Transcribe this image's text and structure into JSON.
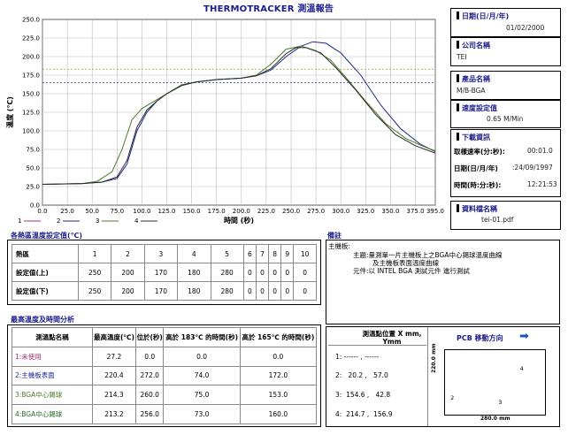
{
  "report_title": "THERMOTRACKER 測溫報告",
  "chart_data": {
    "type": "line",
    "xlabel": "時間 (秒)",
    "ylabel": "溫度 (℃)",
    "xlim": [
      0,
      395
    ],
    "ylim": [
      0,
      250
    ],
    "xticks": [
      "0.0",
      "25.0",
      "50.0",
      "75.0",
      "100.0",
      "125.0",
      "150.0",
      "175.0",
      "200.0",
      "225.0",
      "250.0",
      "275.0",
      "300.0",
      "325.0",
      "350.0",
      "375.0",
      "395.0"
    ],
    "yticks": [
      "0.0",
      "25.0",
      "50.0",
      "75.0",
      "100.0",
      "125.0",
      "150.0",
      "175.0",
      "200.0",
      "225.0",
      "250.0"
    ],
    "xtick_values": [
      0,
      25,
      50,
      75,
      100,
      125,
      150,
      175,
      200,
      225,
      250,
      275,
      300,
      325,
      350,
      375,
      395
    ],
    "ytick_values": [
      0,
      25,
      50,
      75,
      100,
      125,
      150,
      175,
      200,
      225,
      250
    ],
    "hlines": [
      {
        "y": 183,
        "color": "#9a9a2a"
      },
      {
        "y": 165,
        "color": "#2a3a9a"
      }
    ],
    "series": [
      {
        "name": "2",
        "color": "#1e2a8a",
        "x": [
          0,
          40,
          60,
          75,
          85,
          95,
          105,
          115,
          125,
          140,
          155,
          175,
          200,
          215,
          230,
          245,
          260,
          272,
          285,
          300,
          320,
          340,
          360,
          380,
          395
        ],
        "y": [
          28,
          29,
          31,
          36,
          55,
          100,
          125,
          140,
          150,
          162,
          166,
          169,
          171,
          174,
          182,
          200,
          214,
          220,
          218,
          205,
          175,
          135,
          103,
          82,
          72
        ]
      },
      {
        "name": "3",
        "color": "#4d7a2a",
        "x": [
          0,
          40,
          55,
          70,
          80,
          90,
          100,
          110,
          125,
          140,
          155,
          175,
          200,
          215,
          230,
          245,
          260,
          275,
          290,
          305,
          325,
          345,
          365,
          385,
          395
        ],
        "y": [
          28,
          29,
          32,
          45,
          75,
          115,
          130,
          138,
          150,
          162,
          166,
          169,
          171,
          175,
          190,
          210,
          214,
          208,
          195,
          172,
          140,
          110,
          90,
          78,
          73
        ]
      },
      {
        "name": "4",
        "color": "#2a2a2a",
        "x": [
          0,
          40,
          60,
          75,
          85,
          95,
          105,
          115,
          125,
          140,
          155,
          175,
          200,
          215,
          230,
          245,
          255,
          265,
          280,
          295,
          315,
          335,
          355,
          375,
          395
        ],
        "y": [
          28,
          29,
          31,
          38,
          60,
          105,
          128,
          140,
          150,
          161,
          166,
          169,
          171,
          174,
          184,
          204,
          212,
          212,
          205,
          185,
          155,
          122,
          95,
          80,
          70
        ]
      },
      {
        "name": "1",
        "color": "#a0307a",
        "x": [],
        "y": []
      }
    ],
    "legend": [
      "1",
      "2",
      "3",
      "4"
    ]
  },
  "right_panel": {
    "date": {
      "label": "日期(日/月/年)",
      "value": "01/02/2000"
    },
    "company": {
      "label": "公司名稱",
      "value": "TEI"
    },
    "product": {
      "label": "產品名稱",
      "value": "M/B-BGA"
    },
    "speed": {
      "label": "速度設定值",
      "value": "0.65 M/Min"
    },
    "download": {
      "label": "下載資訊",
      "rate_label": "取樣速率(分:秒):",
      "rate_value": "00:01.0",
      "date_label": "日期(日/月/年)",
      "date_value": ":24/09/1997",
      "time_label": "時間(時:分:秒):",
      "time_value": "12:21:53"
    },
    "file": {
      "label": "資料檔名稱",
      "value": "tei-01.pdf"
    }
  },
  "zone": {
    "title": "各熱區溫度設定值(℃)",
    "header_label": "熱區",
    "zones": [
      "1",
      "2",
      "3",
      "4",
      "5",
      "6",
      "7",
      "8",
      "9",
      "10"
    ],
    "upper_label": "設定值(上)",
    "upper": [
      "250",
      "200",
      "170",
      "180",
      "280",
      "0",
      "0",
      "0",
      "0",
      "0"
    ],
    "lower_label": "設定值(下)",
    "lower": [
      "250",
      "200",
      "170",
      "180",
      "280",
      "0",
      "0",
      "0",
      "0",
      "0"
    ]
  },
  "notes": {
    "title": "備註",
    "lines": [
      "主機板:",
      "主題:量測單一片主機板上之BGA中心錫球溫度曲線",
      "及主機板表面溫度曲線",
      "元件:以 INTEL BGA 測試元件 進行測試"
    ]
  },
  "maxtemp": {
    "title": "最高溫度及時間分析",
    "headers": [
      "測溫點名稱",
      "最高溫度(℃)",
      "位於(秒)",
      "高於 183℃ 的時間(秒)",
      "高於 165℃ 的時間(秒)"
    ],
    "rows": [
      {
        "name": "1:未使用",
        "color": "#a0307a",
        "max": "27.2",
        "at": "0.0",
        "t183": "0.0",
        "t165": "0.0"
      },
      {
        "name": "2:主機板表面",
        "color": "#1e2a8a",
        "max": "220.4",
        "at": "272.0",
        "t183": "74.0",
        "t165": "172.0"
      },
      {
        "name": "3:BGA中心錫球",
        "color": "#4d7a2a",
        "max": "214.3",
        "at": "260.0",
        "t183": "75.0",
        "t165": "153.0"
      },
      {
        "name": "4:BGA中心錫球",
        "color": "#2a6a2a",
        "max": "213.2",
        "at": "256.0",
        "t183": "73.0",
        "t165": "160.0"
      }
    ]
  },
  "position": {
    "header": "測溫點位置 X mm, Ymm",
    "rows": [
      "1: ------ , ------",
      "2:   20.2 ,   57.0",
      "3:  154.6 ,   42.8",
      "4:  214.7 ,  156.9"
    ]
  },
  "pcb": {
    "title": "PCB 移動方向",
    "arrow": "➡",
    "height_label": "220.0 mm",
    "width_label": "280.0 mm",
    "points": [
      {
        "label": "2",
        "x": 20.2,
        "y": 57.0
      },
      {
        "label": "3",
        "x": 154.6,
        "y": 42.8
      },
      {
        "label": "4",
        "x": 214.7,
        "y": 156.9
      }
    ],
    "board_w": 280.0,
    "board_h": 220.0
  }
}
